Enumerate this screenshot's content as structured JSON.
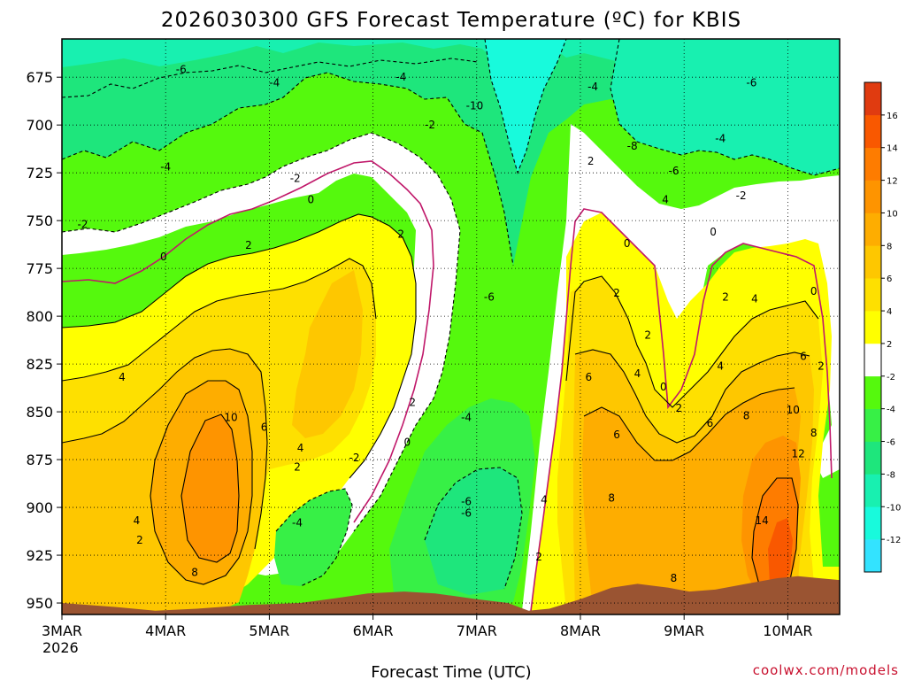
{
  "chart_data": {
    "type": "heatmap",
    "title": "2026030300 GFS Forecast Temperature (ºC) for KBIS",
    "xlabel": "Forecast Time (UTC)",
    "credit": "coolwx.com/models",
    "x_tick_labels": [
      "3MAR",
      "4MAR",
      "5MAR",
      "6MAR",
      "7MAR",
      "8MAR",
      "9MAR",
      "10MAR"
    ],
    "x_year_label": "2026",
    "x_range_days": [
      0,
      7.5
    ],
    "y_tick_labels": [
      "675",
      "700",
      "725",
      "750",
      "775",
      "800",
      "825",
      "850",
      "875",
      "900",
      "925",
      "950"
    ],
    "y_range_hPa": [
      655,
      956
    ],
    "y_inverted": true,
    "grid": true,
    "contour_interval_C": 2,
    "colorbar": {
      "levels": [
        -14,
        -12,
        -10,
        -8,
        -6,
        -4,
        -2,
        2,
        4,
        6,
        8,
        10,
        12,
        14,
        16,
        18
      ],
      "colors": [
        "#33e3ff",
        "#18fadc",
        "#18f0b0",
        "#1ee67c",
        "#37f046",
        "#55f90d",
        "#ffffff",
        "#ffff00",
        "#fee000",
        "#fec700",
        "#fead00",
        "#fe9400",
        "#fe7c00",
        "#f95800",
        "#e03b10"
      ],
      "tick_labels": [
        "-12",
        "-10",
        "-8",
        "-6",
        "-4",
        "-2",
        "2",
        "4",
        "6",
        "8",
        "10",
        "12",
        "14",
        "16"
      ]
    },
    "zero_contour_color": "#c0186a",
    "terrain_color": "#9a5432",
    "terrain_top_hPa": [
      [
        0.0,
        950
      ],
      [
        0.5,
        952
      ],
      [
        0.9,
        954
      ],
      [
        1.3,
        953
      ],
      [
        1.8,
        951
      ],
      [
        2.3,
        950
      ],
      [
        2.7,
        947
      ],
      [
        2.95,
        945
      ],
      [
        3.3,
        944
      ],
      [
        3.6,
        945
      ],
      [
        4.0,
        948
      ],
      [
        4.3,
        950
      ],
      [
        4.5,
        954
      ],
      [
        4.7,
        953
      ],
      [
        5.0,
        948
      ],
      [
        5.3,
        942
      ],
      [
        5.55,
        940
      ],
      [
        5.85,
        942
      ],
      [
        6.05,
        944
      ],
      [
        6.3,
        943
      ],
      [
        6.6,
        940
      ],
      [
        6.9,
        937
      ],
      [
        7.1,
        936
      ],
      [
        7.3,
        937
      ],
      [
        7.5,
        938
      ]
    ],
    "contour_labels": [
      {
        "t": 0.2,
        "p": 752,
        "v": "-2"
      },
      {
        "t": 1.15,
        "p": 671,
        "v": "-6"
      },
      {
        "t": 1.0,
        "p": 722,
        "v": "-4"
      },
      {
        "t": 2.05,
        "p": 678,
        "v": "-4"
      },
      {
        "t": 2.25,
        "p": 728,
        "v": "-2"
      },
      {
        "t": 2.4,
        "p": 739,
        "v": "0"
      },
      {
        "t": 3.27,
        "p": 675,
        "v": "-4"
      },
      {
        "t": 3.55,
        "p": 700,
        "v": "-2"
      },
      {
        "t": 0.98,
        "p": 769,
        "v": "0"
      },
      {
        "t": 1.8,
        "p": 763,
        "v": "2"
      },
      {
        "t": 3.27,
        "p": 757,
        "v": "2"
      },
      {
        "t": 0.58,
        "p": 832,
        "v": "4"
      },
      {
        "t": 1.63,
        "p": 853,
        "v": "10"
      },
      {
        "t": 1.95,
        "p": 858,
        "v": "6"
      },
      {
        "t": 2.3,
        "p": 869,
        "v": "4"
      },
      {
        "t": 2.27,
        "p": 879,
        "v": "2"
      },
      {
        "t": 2.27,
        "p": 908,
        "v": "-4"
      },
      {
        "t": 0.72,
        "p": 907,
        "v": "4"
      },
      {
        "t": 0.75,
        "p": 917,
        "v": "2"
      },
      {
        "t": 1.28,
        "p": 934,
        "v": "8"
      },
      {
        "t": 2.82,
        "p": 874,
        "v": "-2"
      },
      {
        "t": 3.33,
        "p": 866,
        "v": "0"
      },
      {
        "t": 3.38,
        "p": 845,
        "v": "2"
      },
      {
        "t": 3.98,
        "p": 690,
        "v": "-10"
      },
      {
        "t": 4.12,
        "p": 790,
        "v": "-6"
      },
      {
        "t": 3.9,
        "p": 853,
        "v": "-4"
      },
      {
        "t": 3.9,
        "p": 897,
        "v": "-6"
      },
      {
        "t": 3.9,
        "p": 903,
        "v": "-6"
      },
      {
        "t": 4.6,
        "p": 926,
        "v": "2"
      },
      {
        "t": 5.12,
        "p": 680,
        "v": "-4"
      },
      {
        "t": 5.5,
        "p": 711,
        "v": "-8"
      },
      {
        "t": 5.1,
        "p": 719,
        "v": "2"
      },
      {
        "t": 5.9,
        "p": 724,
        "v": "-6"
      },
      {
        "t": 6.65,
        "p": 678,
        "v": "-6"
      },
      {
        "t": 6.35,
        "p": 707,
        "v": "-4"
      },
      {
        "t": 6.55,
        "p": 737,
        "v": "-2"
      },
      {
        "t": 5.45,
        "p": 762,
        "v": "0"
      },
      {
        "t": 5.35,
        "p": 788,
        "v": "2"
      },
      {
        "t": 5.65,
        "p": 810,
        "v": "2"
      },
      {
        "t": 5.82,
        "p": 739,
        "v": "4"
      },
      {
        "t": 6.28,
        "p": 756,
        "v": "0"
      },
      {
        "t": 6.4,
        "p": 790,
        "v": "2"
      },
      {
        "t": 6.68,
        "p": 791,
        "v": "4"
      },
      {
        "t": 7.25,
        "p": 787,
        "v": "0"
      },
      {
        "t": 5.08,
        "p": 832,
        "v": "6"
      },
      {
        "t": 5.55,
        "p": 830,
        "v": "4"
      },
      {
        "t": 5.8,
        "p": 837,
        "v": "0"
      },
      {
        "t": 5.95,
        "p": 848,
        "v": "2"
      },
      {
        "t": 6.35,
        "p": 826,
        "v": "4"
      },
      {
        "t": 7.15,
        "p": 821,
        "v": "6"
      },
      {
        "t": 7.32,
        "p": 826,
        "v": "2"
      },
      {
        "t": 4.65,
        "p": 896,
        "v": "4"
      },
      {
        "t": 5.35,
        "p": 862,
        "v": "6"
      },
      {
        "t": 5.3,
        "p": 895,
        "v": "8"
      },
      {
        "t": 6.25,
        "p": 856,
        "v": "6"
      },
      {
        "t": 6.6,
        "p": 852,
        "v": "8"
      },
      {
        "t": 7.05,
        "p": 849,
        "v": "10"
      },
      {
        "t": 7.25,
        "p": 861,
        "v": "8"
      },
      {
        "t": 7.1,
        "p": 872,
        "v": "12"
      },
      {
        "t": 6.75,
        "p": 907,
        "v": "14"
      },
      {
        "t": 5.9,
        "p": 937,
        "v": "8"
      }
    ]
  }
}
